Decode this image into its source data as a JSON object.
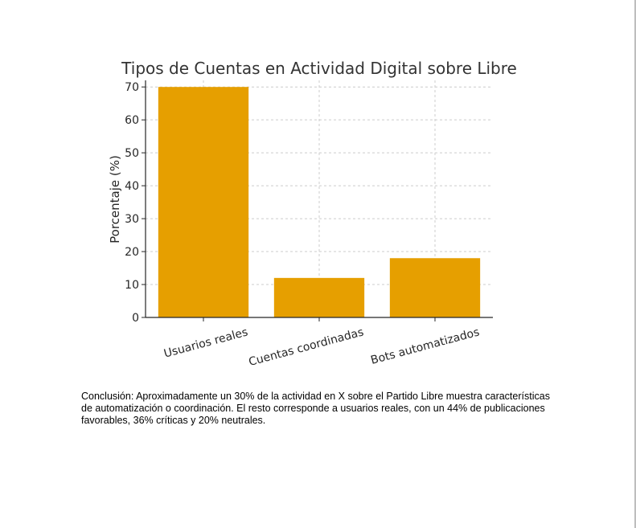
{
  "chart_data": {
    "type": "bar",
    "title": "Tipos de Cuentas en Actividad Digital sobre Libre",
    "xlabel": "",
    "ylabel": "Porcentaje (%)",
    "categories": [
      "Usuarios reales",
      "Cuentas coordinadas",
      "Bots automatizados"
    ],
    "values": [
      70,
      12,
      18
    ],
    "ylim": [
      0,
      72
    ],
    "yticks": [
      0,
      10,
      20,
      30,
      40,
      50,
      60,
      70
    ],
    "grid": true,
    "legend": "none",
    "bar_color": "#E69F00",
    "grid_color": "#cccccc"
  },
  "conclusion_text": "Conclusión: Aproximadamente un 30% de la actividad en X sobre el Partido Libre muestra características de automatización o coordinación. El resto corresponde a usuarios reales, con un 44% de publicaciones favorables, 36% críticas y 20% neutrales."
}
